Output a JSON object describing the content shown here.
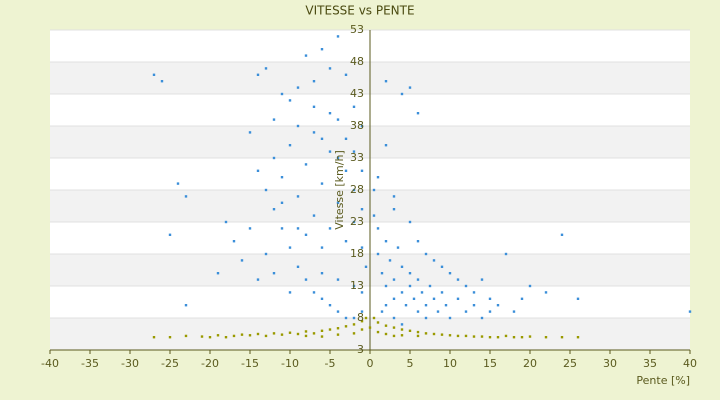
{
  "chart_data": {
    "type": "scatter",
    "title": "VITESSE vs PENTE",
    "x_label": "Pente [%]",
    "y_label": "Vitesse [km/h]",
    "xlim": [
      -40,
      40
    ],
    "xticks": [
      -40,
      -35,
      -30,
      -25,
      -20,
      -15,
      -10,
      -5,
      0,
      5,
      10,
      15,
      20,
      25,
      30,
      35,
      40
    ],
    "ylim": [
      3,
      53
    ],
    "yticks": [
      3,
      8,
      13,
      18,
      23,
      28,
      33,
      38,
      43,
      48,
      53
    ],
    "banded_grid": true,
    "series": [
      {
        "color": "#3b8fd9",
        "x": [
          -27,
          -26,
          -24,
          -23,
          -25,
          -23,
          -19,
          -18,
          -17,
          -16,
          -15,
          -14,
          -13,
          -12,
          -11,
          -10,
          -9,
          -8,
          -7,
          -6,
          -5,
          -4,
          -3,
          -2,
          -1,
          -14,
          -13,
          -12,
          -11,
          -10,
          -9,
          -8,
          -7,
          -6,
          -5,
          -4,
          -3,
          -2,
          -1,
          -13,
          -12,
          -11,
          -10,
          -9,
          -8,
          -7,
          -6,
          -5,
          -4,
          -3,
          -2,
          -1,
          -15,
          -14,
          -12,
          -10,
          -8,
          -7,
          -6,
          -5,
          -4,
          -3,
          -2,
          -1,
          -0.5,
          -9,
          -7,
          -6,
          -5,
          -4,
          -3,
          -2,
          -1,
          -11,
          -9,
          -6,
          -4,
          -2,
          -1,
          0.5,
          1,
          1,
          1.5,
          2,
          2,
          2.5,
          3,
          3,
          3.5,
          4,
          4,
          4.5,
          5,
          5,
          5.5,
          6,
          6,
          6.5,
          7,
          7.5,
          8,
          8.5,
          9,
          9.5,
          10,
          11,
          12,
          13,
          14,
          15,
          16,
          17,
          18,
          22,
          24,
          26,
          40,
          1,
          2,
          3,
          4,
          5,
          6,
          2,
          3,
          5,
          6,
          7,
          8,
          9,
          10,
          11,
          12,
          13,
          14,
          15,
          19,
          20,
          0.5,
          1.5,
          3,
          4,
          2,
          7
        ],
        "y": [
          46,
          45,
          29,
          27,
          21,
          10,
          15,
          23,
          20,
          17,
          37,
          46,
          47,
          39,
          43,
          42,
          44,
          49,
          45,
          50,
          47,
          52,
          46,
          41,
          38,
          31,
          28,
          25,
          22,
          19,
          16,
          14,
          12,
          11,
          10,
          9,
          8,
          8,
          9,
          18,
          33,
          30,
          35,
          27,
          32,
          37,
          29,
          34,
          39,
          31,
          28,
          25,
          22,
          14,
          15,
          12,
          21,
          24,
          19,
          22,
          26,
          20,
          23,
          19,
          16,
          38,
          41,
          36,
          40,
          33,
          36,
          34,
          31,
          26,
          22,
          15,
          14,
          13,
          12,
          24,
          22,
          18,
          15,
          13,
          20,
          17,
          14,
          11,
          19,
          16,
          12,
          10,
          15,
          13,
          11,
          14,
          9,
          12,
          10,
          13,
          11,
          9,
          12,
          10,
          8,
          11,
          9,
          10,
          8,
          9,
          10,
          18,
          9,
          12,
          21,
          11,
          9,
          30,
          35,
          27,
          43,
          44,
          40,
          45,
          25,
          23,
          20,
          18,
          17,
          16,
          15,
          14,
          13,
          12,
          14,
          11,
          11,
          13,
          28,
          9,
          8,
          7,
          10,
          8
        ]
      },
      {
        "color": "#9a9a00",
        "x": [
          -27,
          -25,
          -23,
          -21,
          -19,
          -18,
          -17,
          -16,
          -15,
          -14,
          -13,
          -12,
          -11,
          -10,
          -9,
          -8,
          -7,
          -6,
          -5,
          -4,
          -3,
          -2,
          -1,
          -0.5,
          0.5,
          1,
          2,
          3,
          4,
          5,
          6,
          7,
          8,
          9,
          10,
          11,
          12,
          13,
          14,
          15,
          16,
          17,
          18,
          19,
          20,
          22,
          24,
          26,
          -8,
          -4,
          -2,
          2,
          4,
          6,
          -20,
          -6,
          3,
          1,
          -1,
          0
        ],
        "y": [
          5,
          5,
          5.2,
          5.1,
          5.3,
          5,
          5.2,
          5.4,
          5.3,
          5.5,
          5.2,
          5.6,
          5.4,
          5.7,
          5.5,
          5.9,
          5.6,
          6,
          6.2,
          6.4,
          6.7,
          7,
          7.5,
          8,
          8,
          7.3,
          6.8,
          6.5,
          6.2,
          6,
          5.8,
          5.6,
          5.5,
          5.4,
          5.3,
          5.2,
          5.2,
          5.1,
          5.1,
          5,
          5,
          5.2,
          5,
          5,
          5.1,
          5,
          5,
          5,
          5.2,
          5.4,
          5.6,
          5.5,
          5.3,
          5.2,
          5,
          5.1,
          5.2,
          5.8,
          6.2,
          6.5
        ]
      }
    ]
  }
}
